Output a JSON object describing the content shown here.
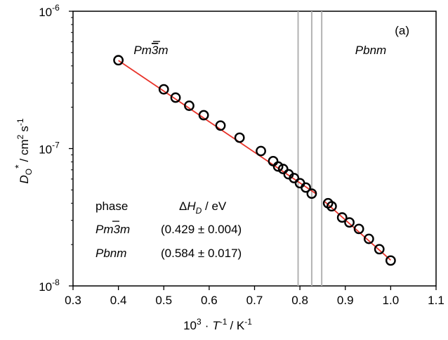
{
  "colors": {
    "fit_line": "#e8332a",
    "points": "#000000",
    "phase_lines": "#b3b3b3",
    "frame": "#000000"
  },
  "chart_data": {
    "type": "scatter",
    "title": "",
    "panel_label": "(a)",
    "x_axis": {
      "label_base": "10",
      "label_exp": "3",
      "label_mid": "·",
      "label_var": "T",
      "label_var_exp": "-1",
      "label_unit": "/ K",
      "label_unit_exp": "-1",
      "range": [
        0.3,
        1.1
      ],
      "ticks": [
        0.3,
        0.4,
        0.5,
        0.6,
        0.7,
        0.8,
        0.9,
        1.0,
        1.1
      ],
      "tick_labels": [
        "0.3",
        "0.4",
        "0.5",
        "0.6",
        "0.7",
        "0.8",
        "0.9",
        "1.0",
        "1.1"
      ]
    },
    "y_axis": {
      "scale": "log",
      "label_var": "D",
      "label_sub": "O",
      "label_sup": "*",
      "label_unit": "/ cm",
      "label_unit_exp": "2",
      "label_unit2": "s",
      "label_unit2_exp": "-1",
      "range": [
        1e-08,
        1e-06
      ],
      "ticks": [
        1e-08,
        1e-07,
        1e-06
      ],
      "tick_labels": [
        {
          "base": "10",
          "exp": "-8"
        },
        {
          "base": "10",
          "exp": "-7"
        },
        {
          "base": "10",
          "exp": "-6"
        }
      ]
    },
    "phase_boundaries_x": [
      0.796,
      0.826,
      0.848
    ],
    "series": [
      {
        "phase": "Pm-3m",
        "points": [
          [
            0.4,
            4.4e-07
          ],
          [
            0.5,
            2.7e-07
          ],
          [
            0.526,
            2.35e-07
          ],
          [
            0.556,
            2.05e-07
          ],
          [
            0.588,
            1.75e-07
          ],
          [
            0.625,
            1.47e-07
          ],
          [
            0.667,
            1.2e-07
          ],
          [
            0.714,
            9.6e-08
          ],
          [
            0.741,
            8.1e-08
          ],
          [
            0.752,
            7.4e-08
          ],
          [
            0.763,
            7.1e-08
          ],
          [
            0.775,
            6.5e-08
          ],
          [
            0.787,
            6.1e-08
          ],
          [
            0.8,
            5.6e-08
          ],
          [
            0.813,
            5.2e-08
          ],
          [
            0.826,
            4.7e-08
          ]
        ],
        "fit": {
          "x": [
            0.4,
            0.835
          ],
          "y": [
            4.38e-07,
            4.7e-08
          ]
        }
      },
      {
        "phase": "Pbnm",
        "points": [
          [
            0.862,
            4e-08
          ],
          [
            0.87,
            3.8e-08
          ],
          [
            0.893,
            3.15e-08
          ],
          [
            0.909,
            2.9e-08
          ],
          [
            0.93,
            2.6e-08
          ],
          [
            0.952,
            2.2e-08
          ],
          [
            0.975,
            1.85e-08
          ],
          [
            1.0,
            1.53e-08
          ]
        ],
        "fit": {
          "x": [
            0.855,
            1.0
          ],
          "y": [
            4.1e-08,
            1.54e-08
          ]
        }
      }
    ],
    "phase_labels": [
      {
        "pre": "Pm",
        "overbar": "3",
        "post": "m"
      },
      {
        "pre": "Pbnm",
        "overbar": "",
        "post": ""
      }
    ],
    "table": {
      "header_phase": "phase",
      "header_delta": "Δ",
      "header_h": "H",
      "header_h_sub": "D",
      "header_unit": " / eV",
      "rows": [
        {
          "phase_pre": "Pm",
          "phase_overbar": "3",
          "phase_post": "m",
          "value": "(0.429 ± 0.004)"
        },
        {
          "phase_pre": "Pbnm",
          "phase_overbar": "",
          "phase_post": "",
          "value": "(0.584 ± 0.017)"
        }
      ]
    }
  }
}
